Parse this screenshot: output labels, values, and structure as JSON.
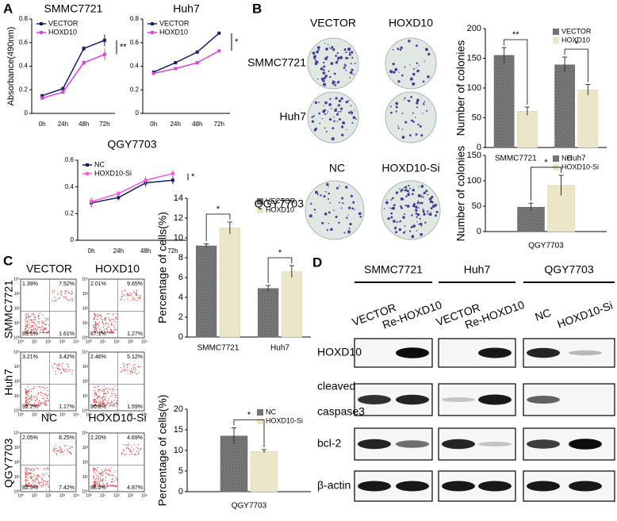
{
  "panel_labels": [
    "A",
    "B",
    "C",
    "D"
  ],
  "chart_data": [
    {
      "type": "line",
      "title": "SMMC7721",
      "ylabel": "Absorbance(490nm)",
      "categories": [
        "0h",
        "24h",
        "48h",
        "72h"
      ],
      "series": [
        {
          "name": "VECTOR",
          "color": "#1a1a6e",
          "values": [
            0.15,
            0.21,
            0.55,
            0.62
          ],
          "errors": [
            0.01,
            0.01,
            0.02,
            0.05
          ]
        },
        {
          "name": "HOXD10",
          "color": "#e040e0",
          "values": [
            0.13,
            0.18,
            0.43,
            0.5
          ],
          "errors": [
            0.01,
            0.01,
            0.02,
            0.05
          ]
        }
      ],
      "ylim": [
        0,
        0.8
      ],
      "yticks": [
        0,
        0.2,
        0.4,
        0.6,
        0.8
      ],
      "annotations": [
        "**"
      ]
    },
    {
      "type": "line",
      "title": "Huh7",
      "categories": [
        "0h",
        "24h",
        "48h",
        "72h"
      ],
      "series": [
        {
          "name": "VECTOR",
          "color": "#1a1a6e",
          "values": [
            0.35,
            0.43,
            0.52,
            0.68
          ],
          "errors": [
            0.01,
            0.01,
            0.01,
            0.01
          ]
        },
        {
          "name": "HOXD10",
          "color": "#e040e0",
          "values": [
            0.34,
            0.38,
            0.43,
            0.53
          ],
          "errors": [
            0.01,
            0.01,
            0.01,
            0.01
          ]
        }
      ],
      "ylim": [
        0,
        0.8
      ],
      "yticks": [
        0,
        0.2,
        0.4,
        0.6,
        0.8
      ],
      "annotations": [
        "*"
      ]
    },
    {
      "type": "line",
      "title": "QGY7703",
      "categories": [
        "0h",
        "24h",
        "48h",
        "72h"
      ],
      "series": [
        {
          "name": "NC",
          "color": "#1a1a6e",
          "values": [
            0.28,
            0.32,
            0.43,
            0.45
          ],
          "errors": [
            0.03,
            0.02,
            0.03,
            0.03
          ]
        },
        {
          "name": "HOXD10-Si",
          "color": "#ff55dd",
          "values": [
            0.29,
            0.35,
            0.45,
            0.5
          ],
          "errors": [
            0.03,
            0.02,
            0.03,
            0.03
          ]
        }
      ],
      "ylim": [
        0,
        0.6
      ],
      "yticks": [
        0,
        0.2,
        0.4,
        0.6
      ],
      "annotations": [
        "*"
      ]
    },
    {
      "type": "bar",
      "ylabel": "Number of colonies",
      "categories": [
        "SMMC7721",
        "Huh7"
      ],
      "series": [
        {
          "name": "VECTOR",
          "color": "#7f7f7f",
          "values": [
            155,
            139
          ],
          "errors": [
            13,
            13
          ]
        },
        {
          "name": "HOXD10",
          "color": "#ebe6c8",
          "values": [
            61,
            97
          ],
          "errors": [
            7,
            9
          ]
        }
      ],
      "ylim": [
        0,
        200
      ],
      "yticks": [
        0,
        50,
        100,
        150,
        200
      ],
      "annotations": [
        "**",
        "*"
      ]
    },
    {
      "type": "bar",
      "ylabel": "Number of colonies",
      "categories": [
        "QGY7703"
      ],
      "series": [
        {
          "name": "NC",
          "color": "#7f7f7f",
          "values": [
            48
          ],
          "errors": [
            8
          ]
        },
        {
          "name": "HOXD10-Si",
          "color": "#ebe6c8",
          "values": [
            91
          ],
          "errors": [
            20
          ]
        }
      ],
      "ylim": [
        0,
        150
      ],
      "yticks": [
        0,
        50,
        100,
        150
      ],
      "annotations": [
        "*"
      ]
    },
    {
      "type": "bar",
      "ylabel": "Percentage of cells(%)",
      "categories": [
        "SMMC7721",
        "Huh7"
      ],
      "series": [
        {
          "name": "VECTOR",
          "color": "#7f7f7f",
          "values": [
            9.2,
            4.9
          ],
          "errors": [
            0.2,
            0.3
          ]
        },
        {
          "name": "HOXD10",
          "color": "#ebe6c8",
          "values": [
            11,
            6.6
          ],
          "errors": [
            0.6,
            0.6
          ]
        }
      ],
      "ylim": [
        0,
        14
      ],
      "yticks": [
        0,
        2,
        4,
        6,
        8,
        10,
        12,
        14
      ],
      "annotations": [
        "*",
        "*"
      ]
    },
    {
      "type": "bar",
      "ylabel": "Percentage of cells(%)",
      "categories": [
        "QGY7703"
      ],
      "series": [
        {
          "name": "NC",
          "color": "#7f7f7f",
          "values": [
            13.5
          ],
          "errors": [
            2
          ]
        },
        {
          "name": "HOXD10-Si",
          "color": "#ebe6c8",
          "values": [
            9.8
          ],
          "errors": [
            0.4
          ]
        }
      ],
      "ylim": [
        0,
        20
      ],
      "yticks": [
        0,
        5,
        10,
        15,
        20
      ],
      "annotations": [
        "*"
      ]
    }
  ],
  "colony_assay": {
    "columns_top": [
      "VECTOR",
      "HOXD10"
    ],
    "rows_top": [
      "SMMC7721",
      "Huh7"
    ],
    "columns_bottom": [
      "NC",
      "HOXD10-Si"
    ],
    "rows_bottom": [
      "QGY7703"
    ]
  },
  "flow_cytometry": {
    "columns_top": [
      "VECTOR",
      "HOXD10"
    ],
    "columns_bottom": [
      "NC",
      "HOXD10-Si"
    ],
    "rows": [
      "SMMC7721",
      "Huh7",
      "QGY7703"
    ],
    "axis_ticks": [
      "10⁰",
      "10¹",
      "10²",
      "10³",
      "10⁴"
    ],
    "plots": [
      [
        "1.39%",
        "7.52%",
        "89.5%",
        "1.61%"
      ],
      [
        "2.01%",
        "9.65%",
        "87.1%",
        "1.27%"
      ],
      [
        "3.21%",
        "3.42%",
        "92.2%",
        "1.17%"
      ],
      [
        "2.46%",
        "5.12%",
        "90.8%",
        "1.59%"
      ],
      [
        "2.05%",
        "8.25%",
        "82.3%",
        "7.42%"
      ],
      [
        "2.20%",
        "4.69%",
        "88.2%",
        "4.87%"
      ]
    ]
  },
  "western_blot": {
    "cell_lines": [
      "SMMC7721",
      "Huh7",
      "QGY7703"
    ],
    "lanes": [
      "VECTOR",
      "Re-HOXD10",
      "VECTOR",
      "Re-HOXD10",
      "NC",
      "HOXD10-Si"
    ],
    "proteins": [
      [
        "HOXD10"
      ],
      [
        "cleaved",
        "caspase3"
      ],
      [
        "bcl-2"
      ],
      [
        "β-actin"
      ]
    ]
  }
}
